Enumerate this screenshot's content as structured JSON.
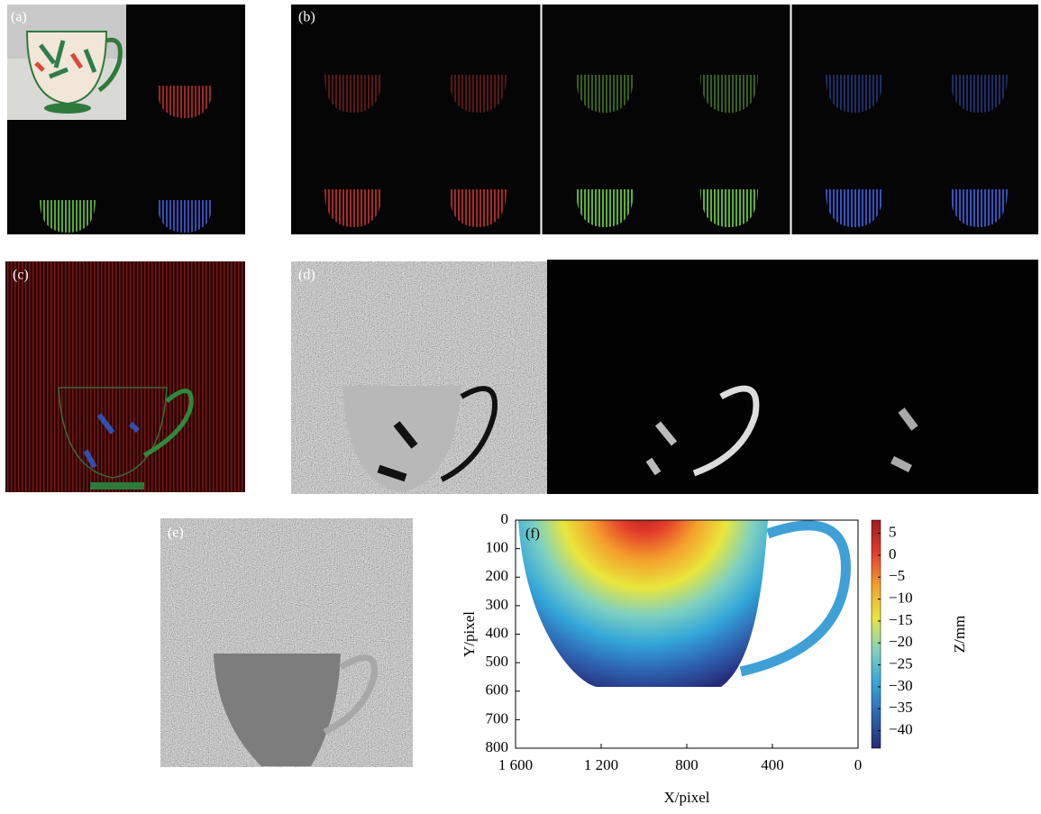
{
  "panel_labels": [
    "(a)",
    "(b)",
    "(c)",
    "(d)",
    "(e)"
  ],
  "chart_data": {
    "type": "contour",
    "label": "(f)",
    "xlabel": "X/pixel",
    "ylabel": "Y/pixel",
    "xlim": [
      1600,
      0
    ],
    "ylim": [
      800,
      0
    ],
    "xticks": [
      {
        "value": 1600,
        "label": "1 600"
      },
      {
        "value": 1200,
        "label": "1 200"
      },
      800,
      400,
      0
    ],
    "yticks": [
      0,
      100,
      200,
      300,
      400,
      500,
      600,
      700,
      800
    ],
    "colorbar": {
      "label": "Z/mm",
      "lim": [
        -44,
        8
      ],
      "ticks": [
        5,
        0,
        {
          "value": -5,
          "label": "−5"
        },
        {
          "value": -10,
          "label": "−10"
        },
        {
          "value": -15,
          "label": "−15"
        },
        {
          "value": -20,
          "label": "−20"
        },
        {
          "value": -25,
          "label": "−25"
        },
        {
          "value": -30,
          "label": "−30"
        },
        {
          "value": -35,
          "label": "−35"
        },
        {
          "value": -40,
          "label": "−40"
        }
      ],
      "colors": [
        "#262a78",
        "#2e64b0",
        "#33a6d9",
        "#7fd1c0",
        "#e9e63c",
        "#f4a02c",
        "#e33b2a",
        "#a01c1f"
      ]
    }
  }
}
